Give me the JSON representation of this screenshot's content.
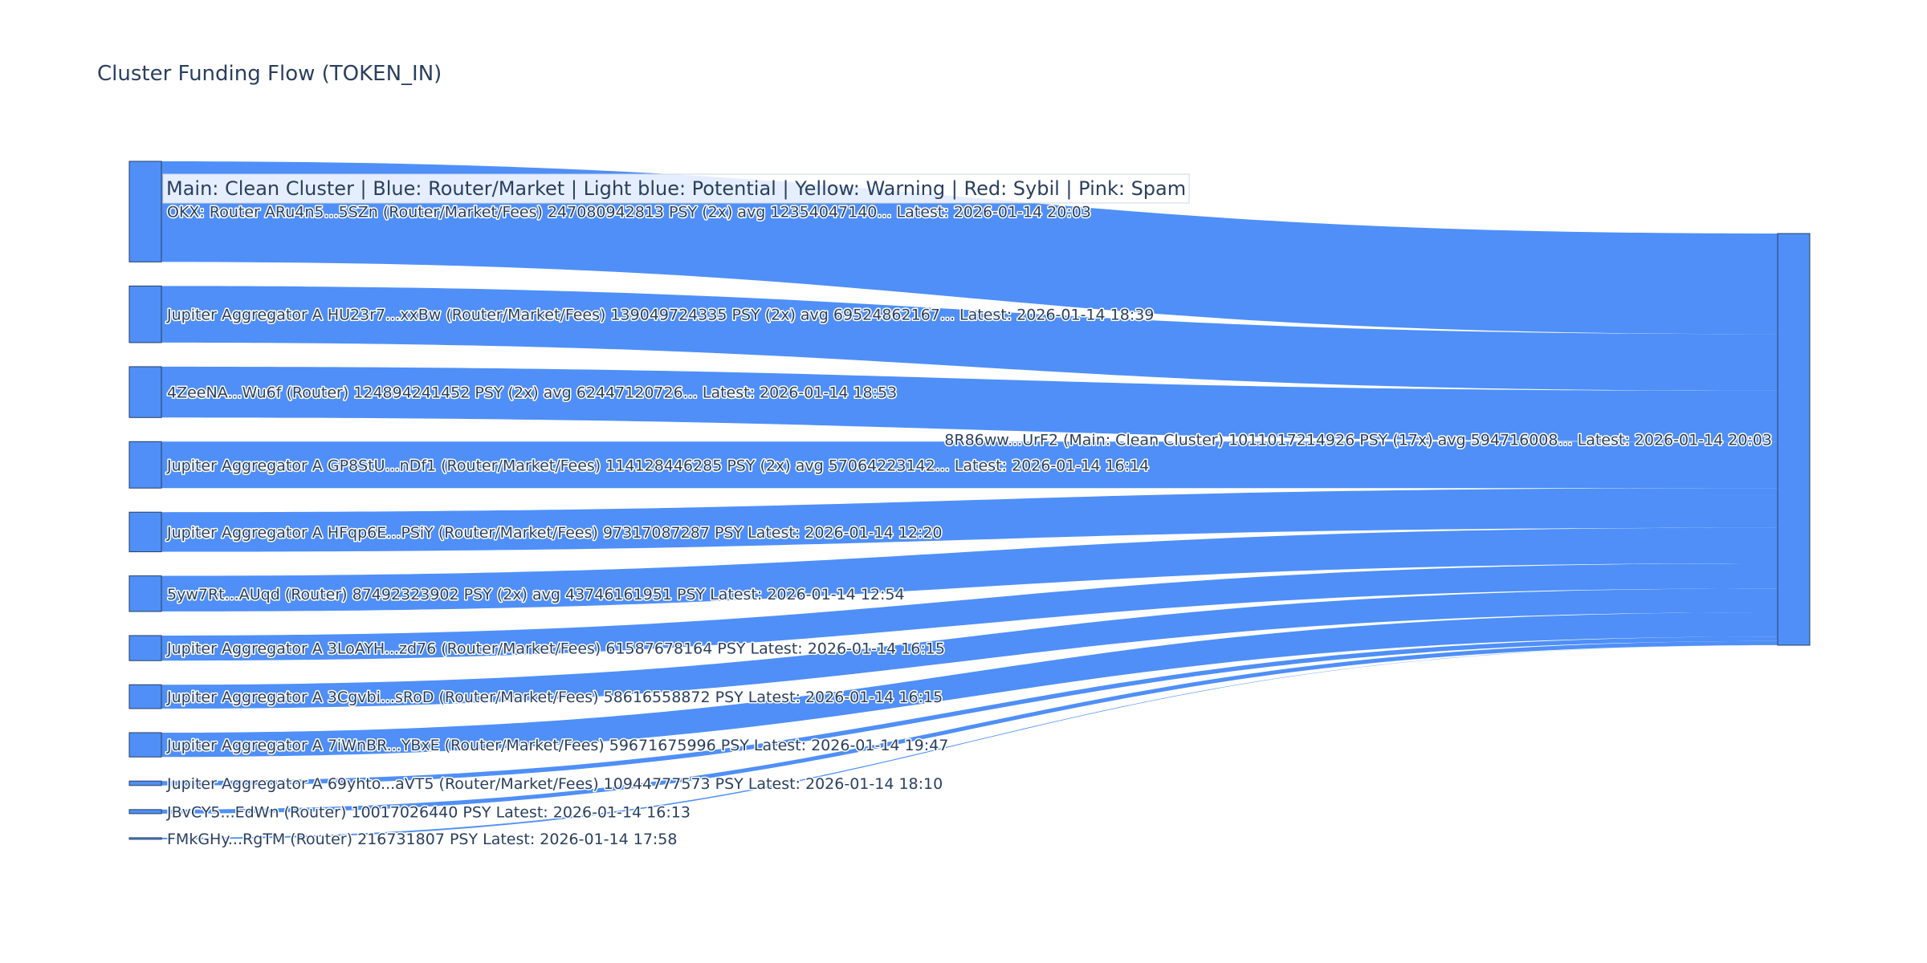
{
  "chart_data": {
    "type": "sankey",
    "title": "Cluster Funding Flow (TOKEN_IN)",
    "legend_text": "Main: Clean Cluster  |  Blue: Router/Market | Light blue: Potential | Yellow: Warning | Red: Sybil | Pink: Spam",
    "color": "#4f8ff7",
    "target": {
      "label": "8R86ww...UrF2 (Main: Clean Cluster) 1011017214926 PSY (17x) avg 594716008... Latest: 2026-01-14 20:03",
      "value": 1011017214926
    },
    "sources": [
      {
        "label": "OKX: Router ARu4n5...5SZn (Router/Market/Fees) 247080942813 PSY (2x) avg 12354047140... Latest: 2026-01-14 20:03",
        "value": 247080942813
      },
      {
        "label": "Jupiter Aggregator A HU23r7...xxBw (Router/Market/Fees) 139049724335 PSY (2x) avg 69524862167... Latest: 2026-01-14 18:39",
        "value": 139049724335
      },
      {
        "label": "4ZeeNA...Wu6f (Router) 124894241452 PSY (2x) avg 62447120726... Latest: 2026-01-14 18:53",
        "value": 124894241452
      },
      {
        "label": "Jupiter Aggregator A GP8StU...nDf1 (Router/Market/Fees) 114128446285 PSY (2x) avg 57064223142... Latest: 2026-01-14 16:14",
        "value": 114128446285
      },
      {
        "label": "Jupiter Aggregator A HFqp6E...PSiY (Router/Market/Fees) 97317087287 PSY Latest: 2026-01-14 12:20",
        "value": 97317087287
      },
      {
        "label": "5yw7Rt...AUqd (Router) 87492323902 PSY (2x) avg 43746161951 PSY Latest: 2026-01-14 12:54",
        "value": 87492323902
      },
      {
        "label": "Jupiter Aggregator A 3LoAYH...zd76 (Router/Market/Fees) 61587678164 PSY Latest: 2026-01-14 16:15",
        "value": 61587678164
      },
      {
        "label": "Jupiter Aggregator A 3Cgvbi...sRoD (Router/Market/Fees) 58616558872 PSY Latest: 2026-01-14 16:15",
        "value": 58616558872
      },
      {
        "label": "Jupiter Aggregator A 7iWnBR...YBxE (Router/Market/Fees) 59671675996 PSY Latest: 2026-01-14 19:47",
        "value": 59671675996
      },
      {
        "label": "Jupiter Aggregator A 69yhto...aVT5 (Router/Market/Fees) 10944777573 PSY Latest: 2026-01-14 18:10",
        "value": 10944777573
      },
      {
        "label": "JBvCY5...EdWn (Router) 10017026440 PSY Latest: 2026-01-14 16:13",
        "value": 10017026440
      },
      {
        "label": "FMkGHy...RgTM (Router) 216731807 PSY Latest: 2026-01-14 17:58",
        "value": 216731807
      }
    ]
  }
}
